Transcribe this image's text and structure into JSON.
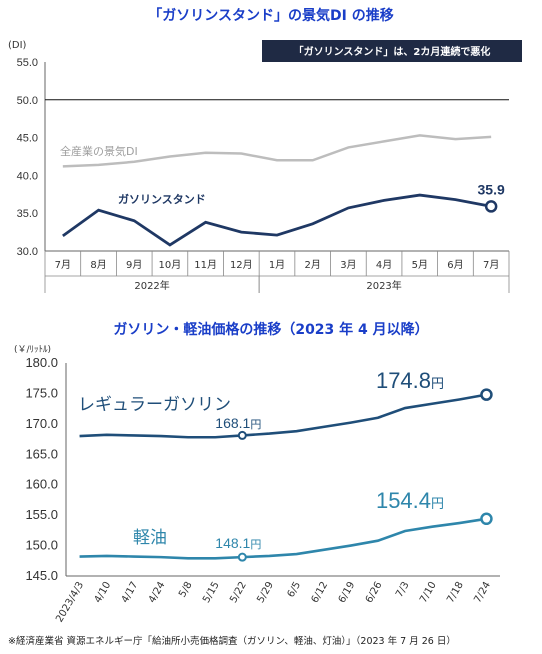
{
  "chart_data": [
    {
      "type": "line",
      "title": "「ガソリンスタンド」の景気DI の推移",
      "yunit": "(DI)",
      "ylim": [
        30.0,
        55.0
      ],
      "yticks": [
        "55.0",
        "50.0",
        "45.0",
        "40.0",
        "35.0",
        "30.0"
      ],
      "categories": [
        "7月",
        "8月",
        "9月",
        "10月",
        "11月",
        "12月",
        "1月",
        "2月",
        "3月",
        "4月",
        "5月",
        "6月",
        "7月"
      ],
      "year_groups": [
        {
          "label": "2022年",
          "span": [
            0,
            5
          ]
        },
        {
          "label": "2023年",
          "span": [
            6,
            12
          ]
        }
      ],
      "reference_line": 50.0,
      "callout": "「ガソリンスタンド」は、2カ月連続で悪化",
      "last_value_label": "35.9",
      "series": [
        {
          "name": "ガソリンスタンド",
          "color": "#1f3864",
          "values": [
            32.0,
            35.4,
            34.0,
            30.8,
            33.8,
            32.5,
            32.1,
            33.6,
            35.7,
            36.7,
            37.4,
            36.8,
            35.9
          ]
        },
        {
          "name": "全産業の景気DI",
          "color": "#bdbdbd",
          "values": [
            41.2,
            41.4,
            41.8,
            42.5,
            43.0,
            42.9,
            42.0,
            42.0,
            43.7,
            44.5,
            45.3,
            44.8,
            45.1
          ]
        }
      ]
    },
    {
      "type": "line",
      "title": "ガソリン・軽油価格の推移（2023 年 4 月以降）",
      "yunit": "(￥/ﾘｯﾄﾙ)",
      "ylim": [
        145.0,
        180.0
      ],
      "yticks": [
        "180.0",
        "175.0",
        "170.0",
        "165.0",
        "160.0",
        "155.0",
        "150.0",
        "145.0"
      ],
      "categories": [
        "2023/4/3",
        "4/10",
        "4/17",
        "4/24",
        "5/8",
        "5/15",
        "5/22",
        "5/29",
        "6/5",
        "6/12",
        "6/19",
        "6/26",
        "7/3",
        "7/10",
        "7/18",
        "7/24"
      ],
      "series": [
        {
          "name": "レギュラーガソリン",
          "color": "#1f4e79",
          "values": [
            168.0,
            168.2,
            168.1,
            168.0,
            167.8,
            167.8,
            168.1,
            168.4,
            168.8,
            169.5,
            170.2,
            171.0,
            172.6,
            173.3,
            174.0,
            174.8
          ]
        },
        {
          "name": "軽油",
          "color": "#2e86ab",
          "values": [
            148.2,
            148.3,
            148.2,
            148.1,
            147.9,
            147.9,
            148.1,
            148.3,
            148.6,
            149.3,
            150.0,
            150.8,
            152.4,
            153.1,
            153.7,
            154.4
          ]
        }
      ],
      "value_labels": [
        {
          "text": "168.1",
          "unit": "円"
        },
        {
          "text": "174.8",
          "unit": "円"
        },
        {
          "text": "148.1",
          "unit": "円"
        },
        {
          "text": "154.4",
          "unit": "円"
        }
      ]
    }
  ],
  "footnote": "※経済産業省 資源エネルギー庁「給油所小売価格調査（ガソリン、軽油、灯油）」（2023 年 7 月 26 日）"
}
